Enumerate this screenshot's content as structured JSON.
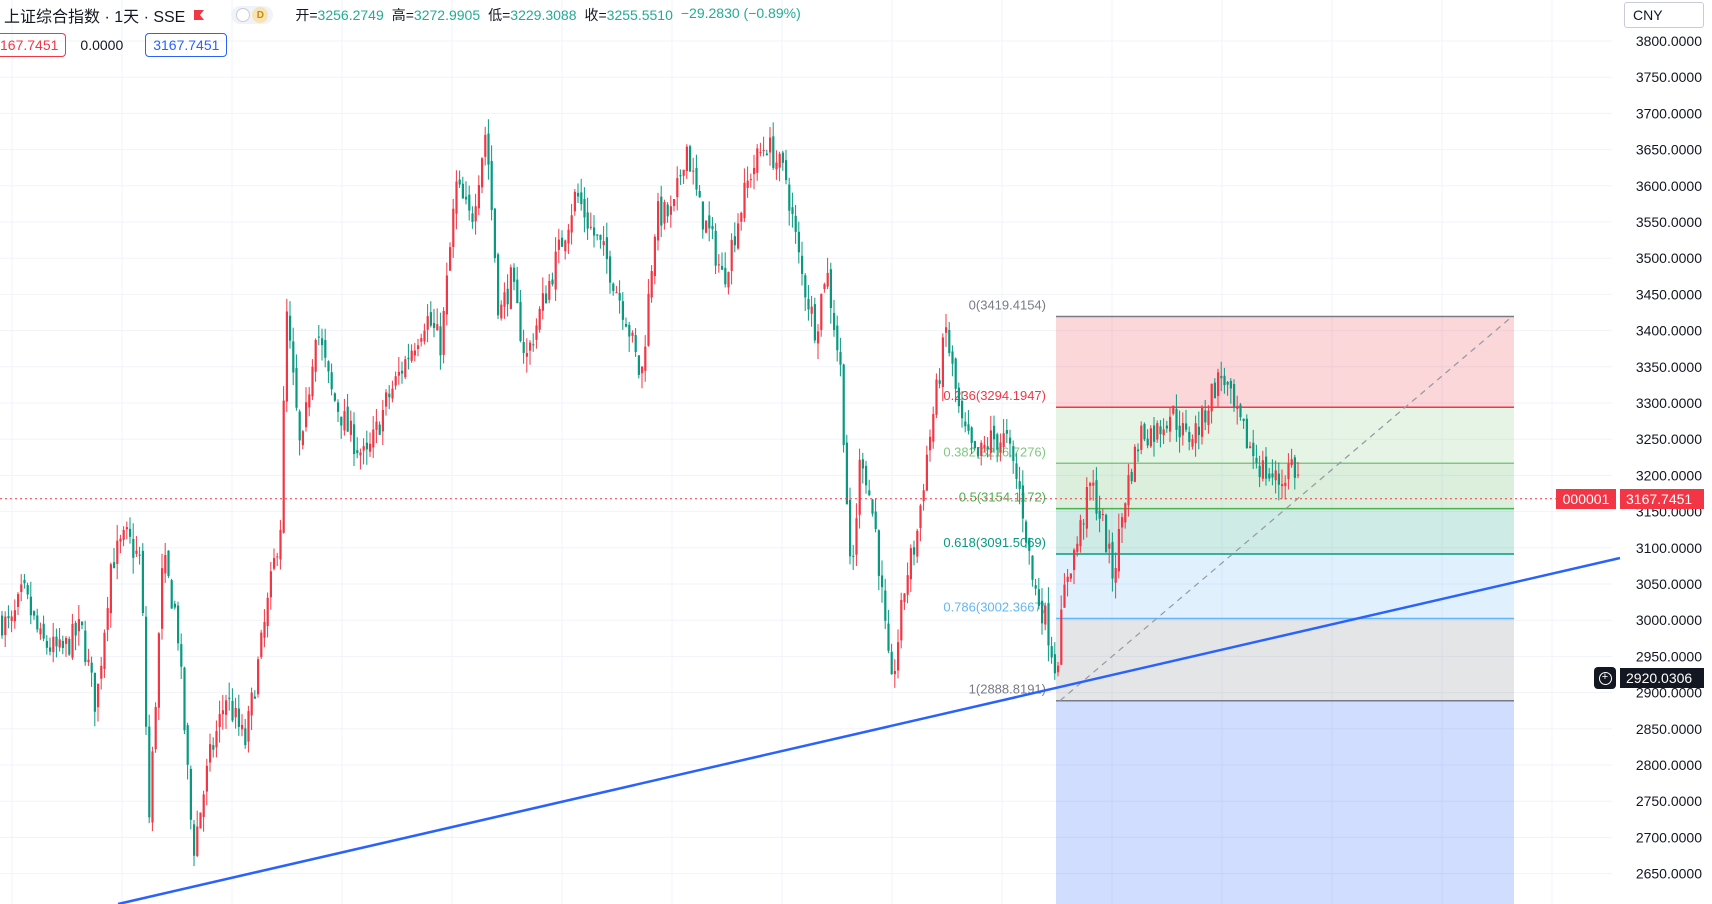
{
  "header": {
    "symbol": "上证综合指数 · 1天 · SSE",
    "interval_badge": "D",
    "open_label": "开=",
    "open": "3256.2749",
    "high_label": "高=",
    "high": "3272.9905",
    "low_label": "低=",
    "low": "3229.3088",
    "close_label": "收=",
    "close": "3255.5510",
    "change": "−29.2830 (−0.89%)"
  },
  "indicator": {
    "value_left": "167.7451",
    "value_mid": "0.0000",
    "value_right": "3167.7451"
  },
  "currency": "CNY",
  "price_axis": {
    "ticks": [
      "3800.0000",
      "3750.0000",
      "3700.0000",
      "3650.0000",
      "3600.0000",
      "3550.0000",
      "3500.0000",
      "3450.0000",
      "3400.0000",
      "3350.0000",
      "3300.0000",
      "3250.0000",
      "3200.0000",
      "3150.0000",
      "3100.0000",
      "3050.0000",
      "3000.0000",
      "2950.0000",
      "2900.0000",
      "2850.0000",
      "2800.0000",
      "2750.0000",
      "2700.0000",
      "2650.0000"
    ],
    "last_symbol": "000001",
    "last_price": "3167.7451",
    "cursor_price": "2920.0306"
  },
  "fib": {
    "levels": [
      {
        "ratio": 0,
        "label": "0(3419.4154)",
        "price": 3419.4154,
        "color": "#787b86"
      },
      {
        "ratio": 0.236,
        "label": "0.236(3294.1947)",
        "price": 3294.1947,
        "color": "#f23645"
      },
      {
        "ratio": 0.382,
        "label": "0.382(3216.7276)",
        "price": 3216.7276,
        "color": "#81c784"
      },
      {
        "ratio": 0.5,
        "label": "0.5(3154.1172)",
        "price": 3154.1172,
        "color": "#4caf50"
      },
      {
        "ratio": 0.618,
        "label": "0.618(3091.5069)",
        "price": 3091.5069,
        "color": "#089981"
      },
      {
        "ratio": 0.786,
        "label": "0.786(3002.3667)",
        "price": 3002.3667,
        "color": "#64b5f6"
      },
      {
        "ratio": 1,
        "label": "1(2888.8191)",
        "price": 2888.8191,
        "color": "#787b86"
      }
    ],
    "zone_colors": [
      "#f23645",
      "#81c784",
      "#4caf50",
      "#089981",
      "#64b5f6",
      "#787b86",
      "#2962ff"
    ]
  },
  "colors": {
    "up": "#f23645",
    "down": "#089981",
    "trendline": "#2962ff",
    "grid": "#f0f3fa"
  }
}
